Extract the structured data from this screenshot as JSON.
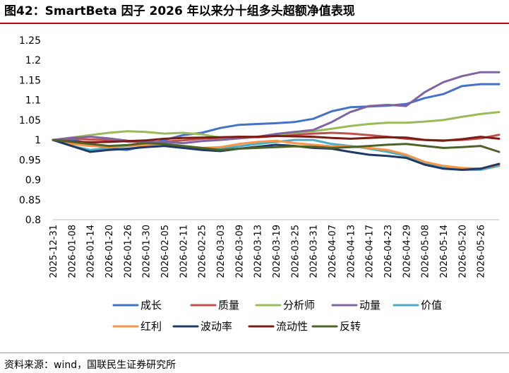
{
  "header": {
    "title": "图42：SmartBeta 因子 2026 年以来分十组多头超额净值表现"
  },
  "footer": {
    "source": "资料来源：wind，国联民生证券研究所"
  },
  "chart_data": {
    "type": "line",
    "title": "",
    "xlabel": "",
    "ylabel": "",
    "ylim": [
      0.8,
      1.25
    ],
    "yticks": [
      0.8,
      0.85,
      0.9,
      0.95,
      1,
      1.05,
      1.1,
      1.15,
      1.2,
      1.25
    ],
    "grid": false,
    "legend_position": "bottom",
    "x_ticks": [
      "2025-12-31",
      "2026-01-08",
      "2026-01-14",
      "2026-01-20",
      "2026-01-26",
      "2026-01-30",
      "2026-02-05",
      "2026-02-11",
      "2026-02-25",
      "2026-03-03",
      "2026-03-09",
      "2026-03-13",
      "2026-03-19",
      "2026-03-25",
      "2026-03-31",
      "2026-04-07",
      "2026-04-13",
      "2026-04-17",
      "2026-04-23",
      "2026-04-29",
      "2026-05-08",
      "2026-05-14",
      "2026-05-20",
      "2026-05-26"
    ],
    "series": [
      {
        "name": "成长",
        "color": "#4472c4",
        "values": [
          1.0,
          1.001,
          0.99,
          0.978,
          0.975,
          0.985,
          1.0,
          1.012,
          1.018,
          1.03,
          1.038,
          1.04,
          1.042,
          1.045,
          1.053,
          1.072,
          1.082,
          1.084,
          1.086,
          1.09,
          1.105,
          1.115,
          1.135,
          1.14,
          1.14
        ]
      },
      {
        "name": "质量",
        "color": "#c0504d",
        "values": [
          1.0,
          1.003,
          1.001,
          1.0,
          0.996,
          0.994,
          0.996,
          0.999,
          1.003,
          1.005,
          1.008,
          1.007,
          1.01,
          1.013,
          1.016,
          1.018,
          1.016,
          1.012,
          1.008,
          1.003,
          1.0,
          0.999,
          1.0,
          1.004,
          1.013
        ]
      },
      {
        "name": "分析师",
        "color": "#9bbb59",
        "values": [
          1.0,
          1.006,
          1.012,
          1.018,
          1.022,
          1.02,
          1.016,
          1.018,
          1.014,
          1.006,
          1.004,
          1.008,
          1.013,
          1.018,
          1.022,
          1.028,
          1.035,
          1.04,
          1.043,
          1.043,
          1.046,
          1.05,
          1.058,
          1.065,
          1.07
        ]
      },
      {
        "name": "动量",
        "color": "#8064a2",
        "values": [
          1.0,
          1.005,
          1.008,
          1.004,
          0.998,
          0.995,
          0.995,
          0.992,
          0.997,
          1.0,
          1.004,
          1.008,
          1.015,
          1.02,
          1.025,
          1.045,
          1.07,
          1.085,
          1.088,
          1.085,
          1.12,
          1.145,
          1.16,
          1.17,
          1.17
        ]
      },
      {
        "name": "价值",
        "color": "#4bacc6",
        "values": [
          1.0,
          0.985,
          0.975,
          0.98,
          0.985,
          0.992,
          0.99,
          0.985,
          0.98,
          0.978,
          0.984,
          0.99,
          0.995,
          1.0,
          1.0,
          0.99,
          0.985,
          0.978,
          0.97,
          0.96,
          0.94,
          0.93,
          0.925,
          0.925,
          0.935
        ]
      },
      {
        "name": "红利",
        "color": "#f79646",
        "values": [
          1.0,
          0.99,
          0.985,
          0.983,
          0.985,
          0.987,
          0.985,
          0.983,
          0.98,
          0.982,
          0.99,
          0.995,
          0.998,
          0.992,
          0.988,
          0.984,
          0.983,
          0.98,
          0.975,
          0.963,
          0.945,
          0.935,
          0.93,
          0.928,
          0.938
        ]
      },
      {
        "name": "波动率",
        "color": "#1f3864",
        "values": [
          1.0,
          0.985,
          0.97,
          0.975,
          0.978,
          0.982,
          0.985,
          0.98,
          0.975,
          0.972,
          0.978,
          0.983,
          0.988,
          0.985,
          0.98,
          0.978,
          0.97,
          0.963,
          0.96,
          0.955,
          0.938,
          0.928,
          0.925,
          0.928,
          0.94
        ]
      },
      {
        "name": "流动性",
        "color": "#7b1c14",
        "values": [
          1.0,
          0.996,
          0.994,
          0.995,
          0.997,
          0.999,
          1.003,
          1.005,
          1.006,
          1.007,
          1.008,
          1.008,
          1.01,
          1.009,
          1.008,
          1.005,
          1.003,
          1.005,
          1.007,
          1.006,
          1.0,
          0.998,
          1.002,
          1.008,
          1.003
        ]
      },
      {
        "name": "反转",
        "color": "#4f6228",
        "values": [
          1.0,
          0.995,
          0.99,
          0.985,
          0.987,
          0.992,
          0.99,
          0.985,
          0.98,
          0.975,
          0.978,
          0.98,
          0.982,
          0.984,
          0.983,
          0.98,
          0.982,
          0.985,
          0.988,
          0.99,
          0.985,
          0.98,
          0.982,
          0.985,
          0.97
        ]
      }
    ]
  }
}
